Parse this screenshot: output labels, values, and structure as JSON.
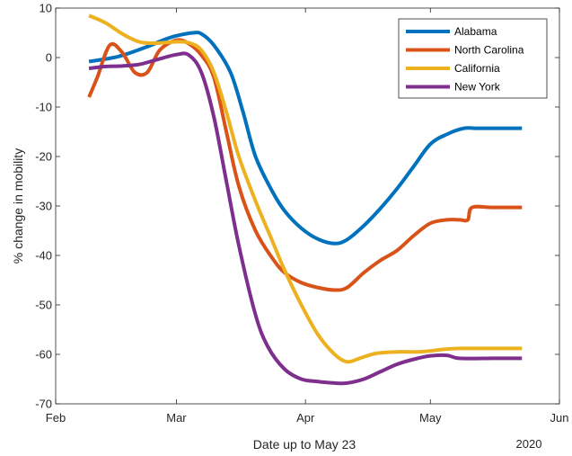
{
  "chart_data": {
    "type": "line",
    "title": "",
    "xlabel": "Date up to May 23",
    "ylabel": "% change in mobility",
    "x_year_label": "2020",
    "xlim": [
      "2020-02-01",
      "2020-06-01"
    ],
    "ylim": [
      -70,
      10
    ],
    "x_ticks": [
      {
        "date": "2020-02-01",
        "label": "Feb"
      },
      {
        "date": "2020-03-01",
        "label": "Mar"
      },
      {
        "date": "2020-04-01",
        "label": "Apr"
      },
      {
        "date": "2020-05-01",
        "label": "May"
      },
      {
        "date": "2020-06-01",
        "label": "Jun"
      }
    ],
    "y_ticks": [
      {
        "value": 10,
        "label": "10"
      },
      {
        "value": 0,
        "label": "0"
      },
      {
        "value": -10,
        "label": "-10"
      },
      {
        "value": -20,
        "label": "-20"
      },
      {
        "value": -30,
        "label": "-30"
      },
      {
        "value": -40,
        "label": "-40"
      },
      {
        "value": -50,
        "label": "-50"
      },
      {
        "value": -60,
        "label": "-60"
      },
      {
        "value": -70,
        "label": "-70"
      }
    ],
    "grid": false,
    "legend_position": "top-right",
    "series": [
      {
        "name": "Alabama",
        "color": "#0072BD",
        "x": [
          "2020-02-09",
          "2020-02-16",
          "2020-02-23",
          "2020-02-27",
          "2020-03-01",
          "2020-03-05",
          "2020-03-07",
          "2020-03-10",
          "2020-03-14",
          "2020-03-17",
          "2020-03-20",
          "2020-03-24",
          "2020-03-27",
          "2020-03-31",
          "2020-04-04",
          "2020-04-08",
          "2020-04-11",
          "2020-04-15",
          "2020-04-19",
          "2020-04-23",
          "2020-04-27",
          "2020-05-01",
          "2020-05-05",
          "2020-05-09",
          "2020-05-12",
          "2020-05-16",
          "2020-05-20",
          "2020-05-23"
        ],
        "y": [
          -0.8,
          0.2,
          2.2,
          3.6,
          4.4,
          5.0,
          4.8,
          2.5,
          -3.0,
          -11.0,
          -20.0,
          -27.0,
          -31.0,
          -34.5,
          -36.7,
          -37.6,
          -36.8,
          -34.0,
          -30.5,
          -26.5,
          -22.0,
          -17.5,
          -15.5,
          -14.3,
          -14.3,
          -14.3,
          -14.3,
          -14.3
        ]
      },
      {
        "name": "North Carolina",
        "color": "#D95319",
        "x": [
          "2020-02-09",
          "2020-02-11",
          "2020-02-14",
          "2020-02-17",
          "2020-02-20",
          "2020-02-23",
          "2020-02-26",
          "2020-03-01",
          "2020-03-04",
          "2020-03-07",
          "2020-03-10",
          "2020-03-13",
          "2020-03-16",
          "2020-03-20",
          "2020-03-24",
          "2020-03-27",
          "2020-03-31",
          "2020-04-04",
          "2020-04-08",
          "2020-04-11",
          "2020-04-15",
          "2020-04-19",
          "2020-04-23",
          "2020-04-27",
          "2020-05-01",
          "2020-05-05",
          "2020-05-08",
          "2020-05-10",
          "2020-05-11",
          "2020-05-16",
          "2020-05-23"
        ],
        "y": [
          -8.0,
          -4.0,
          2.5,
          1.0,
          -3.0,
          -3.0,
          1.5,
          3.5,
          2.8,
          0.5,
          -4.0,
          -15.0,
          -26.0,
          -35.0,
          -40.5,
          -43.5,
          -45.5,
          -46.5,
          -47.0,
          -46.5,
          -43.5,
          -41.0,
          -39.0,
          -36.0,
          -33.5,
          -32.8,
          -32.8,
          -32.8,
          -30.3,
          -30.3,
          -30.3
        ]
      },
      {
        "name": "California",
        "color": "#EDB120",
        "x": [
          "2020-02-09",
          "2020-02-13",
          "2020-02-17",
          "2020-02-21",
          "2020-02-25",
          "2020-03-01",
          "2020-03-04",
          "2020-03-07",
          "2020-03-10",
          "2020-03-13",
          "2020-03-16",
          "2020-03-20",
          "2020-03-24",
          "2020-03-27",
          "2020-03-31",
          "2020-04-04",
          "2020-04-08",
          "2020-04-11",
          "2020-04-14",
          "2020-04-18",
          "2020-04-23",
          "2020-04-28",
          "2020-05-01",
          "2020-05-04",
          "2020-05-08",
          "2020-05-16",
          "2020-05-23"
        ],
        "y": [
          8.5,
          7.0,
          4.8,
          3.2,
          2.9,
          3.2,
          3.0,
          1.5,
          -3.0,
          -11.0,
          -20.0,
          -29.0,
          -37.0,
          -43.0,
          -50.0,
          -56.0,
          -60.0,
          -61.5,
          -60.8,
          -59.8,
          -59.5,
          -59.5,
          -59.3,
          -59.0,
          -58.8,
          -58.8,
          -58.8
        ]
      },
      {
        "name": "New York",
        "color": "#7E2F8E",
        "x": [
          "2020-02-09",
          "2020-02-13",
          "2020-02-17",
          "2020-02-21",
          "2020-02-25",
          "2020-03-01",
          "2020-03-04",
          "2020-03-07",
          "2020-03-10",
          "2020-03-13",
          "2020-03-16",
          "2020-03-20",
          "2020-03-23",
          "2020-03-27",
          "2020-03-31",
          "2020-04-04",
          "2020-04-08",
          "2020-04-11",
          "2020-04-15",
          "2020-04-19",
          "2020-04-23",
          "2020-04-27",
          "2020-05-01",
          "2020-05-05",
          "2020-05-08",
          "2020-05-16",
          "2020-05-23"
        ],
        "y": [
          -2.2,
          -1.8,
          -1.7,
          -1.4,
          -0.5,
          0.6,
          0.5,
          -3.0,
          -12.0,
          -25.0,
          -38.0,
          -52.0,
          -58.5,
          -63.0,
          -65.0,
          -65.5,
          -65.8,
          -65.8,
          -65.0,
          -63.5,
          -62.0,
          -61.0,
          -60.3,
          -60.2,
          -60.8,
          -60.8,
          -60.8
        ]
      }
    ]
  }
}
